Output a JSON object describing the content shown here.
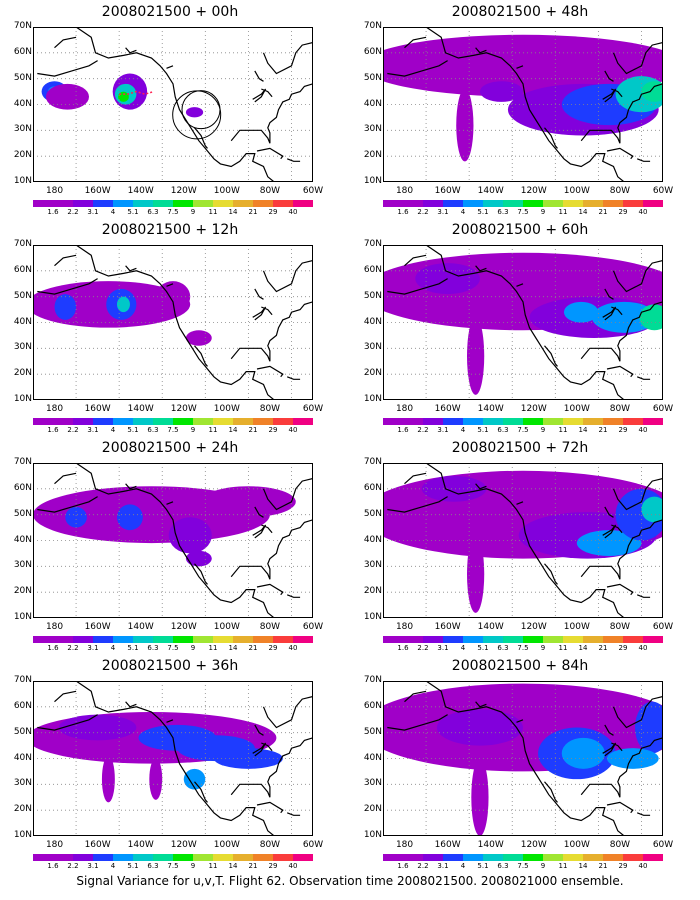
{
  "caption": "Signal Variance for u,v,T. Flight 62. Observation time 2008021500. 2008021000 ensemble.",
  "colorbar": {
    "labels": [
      "1.6",
      "2.2",
      "3.1",
      "4",
      "5.1",
      "6.3",
      "7.5",
      "9",
      "11",
      "14",
      "21",
      "29",
      "40"
    ],
    "colors": [
      "#a000c8",
      "#8200dc",
      "#1e3cff",
      "#0096ff",
      "#00c8c8",
      "#00dc96",
      "#00e600",
      "#a0e632",
      "#e6dc32",
      "#e6af2d",
      "#f08228",
      "#fa3c3c",
      "#f00082"
    ]
  },
  "axes": {
    "y_ticks": [
      "70N",
      "60N",
      "50N",
      "40N",
      "30N",
      "20N",
      "10N"
    ],
    "x_ticks": [
      "180",
      "160W",
      "140W",
      "120W",
      "100W",
      "80W",
      "60W"
    ]
  },
  "chart_data": [
    {
      "type": "heatmap",
      "title": "2008021500 + 00h",
      "xlim": [
        170,
        300
      ],
      "ylim": [
        10,
        70
      ],
      "grid": true
    },
    {
      "type": "heatmap",
      "title": "2008021500 + 12h",
      "xlim": [
        170,
        300
      ],
      "ylim": [
        10,
        70
      ],
      "grid": true
    },
    {
      "type": "heatmap",
      "title": "2008021500 + 24h",
      "xlim": [
        170,
        300
      ],
      "ylim": [
        10,
        70
      ],
      "grid": true
    },
    {
      "type": "heatmap",
      "title": "2008021500 + 36h",
      "xlim": [
        170,
        300
      ],
      "ylim": [
        10,
        70
      ],
      "grid": true
    },
    {
      "type": "heatmap",
      "title": "2008021500 + 48h",
      "xlim": [
        170,
        300
      ],
      "ylim": [
        10,
        70
      ],
      "grid": true
    },
    {
      "type": "heatmap",
      "title": "2008021500 + 60h",
      "xlim": [
        170,
        300
      ],
      "ylim": [
        10,
        70
      ],
      "grid": true
    },
    {
      "type": "heatmap",
      "title": "2008021500 + 72h",
      "xlim": [
        170,
        300
      ],
      "ylim": [
        10,
        70
      ],
      "grid": true
    },
    {
      "type": "heatmap",
      "title": "2008021500 + 84h",
      "xlim": [
        170,
        300
      ],
      "ylim": [
        10,
        70
      ],
      "grid": true
    }
  ]
}
